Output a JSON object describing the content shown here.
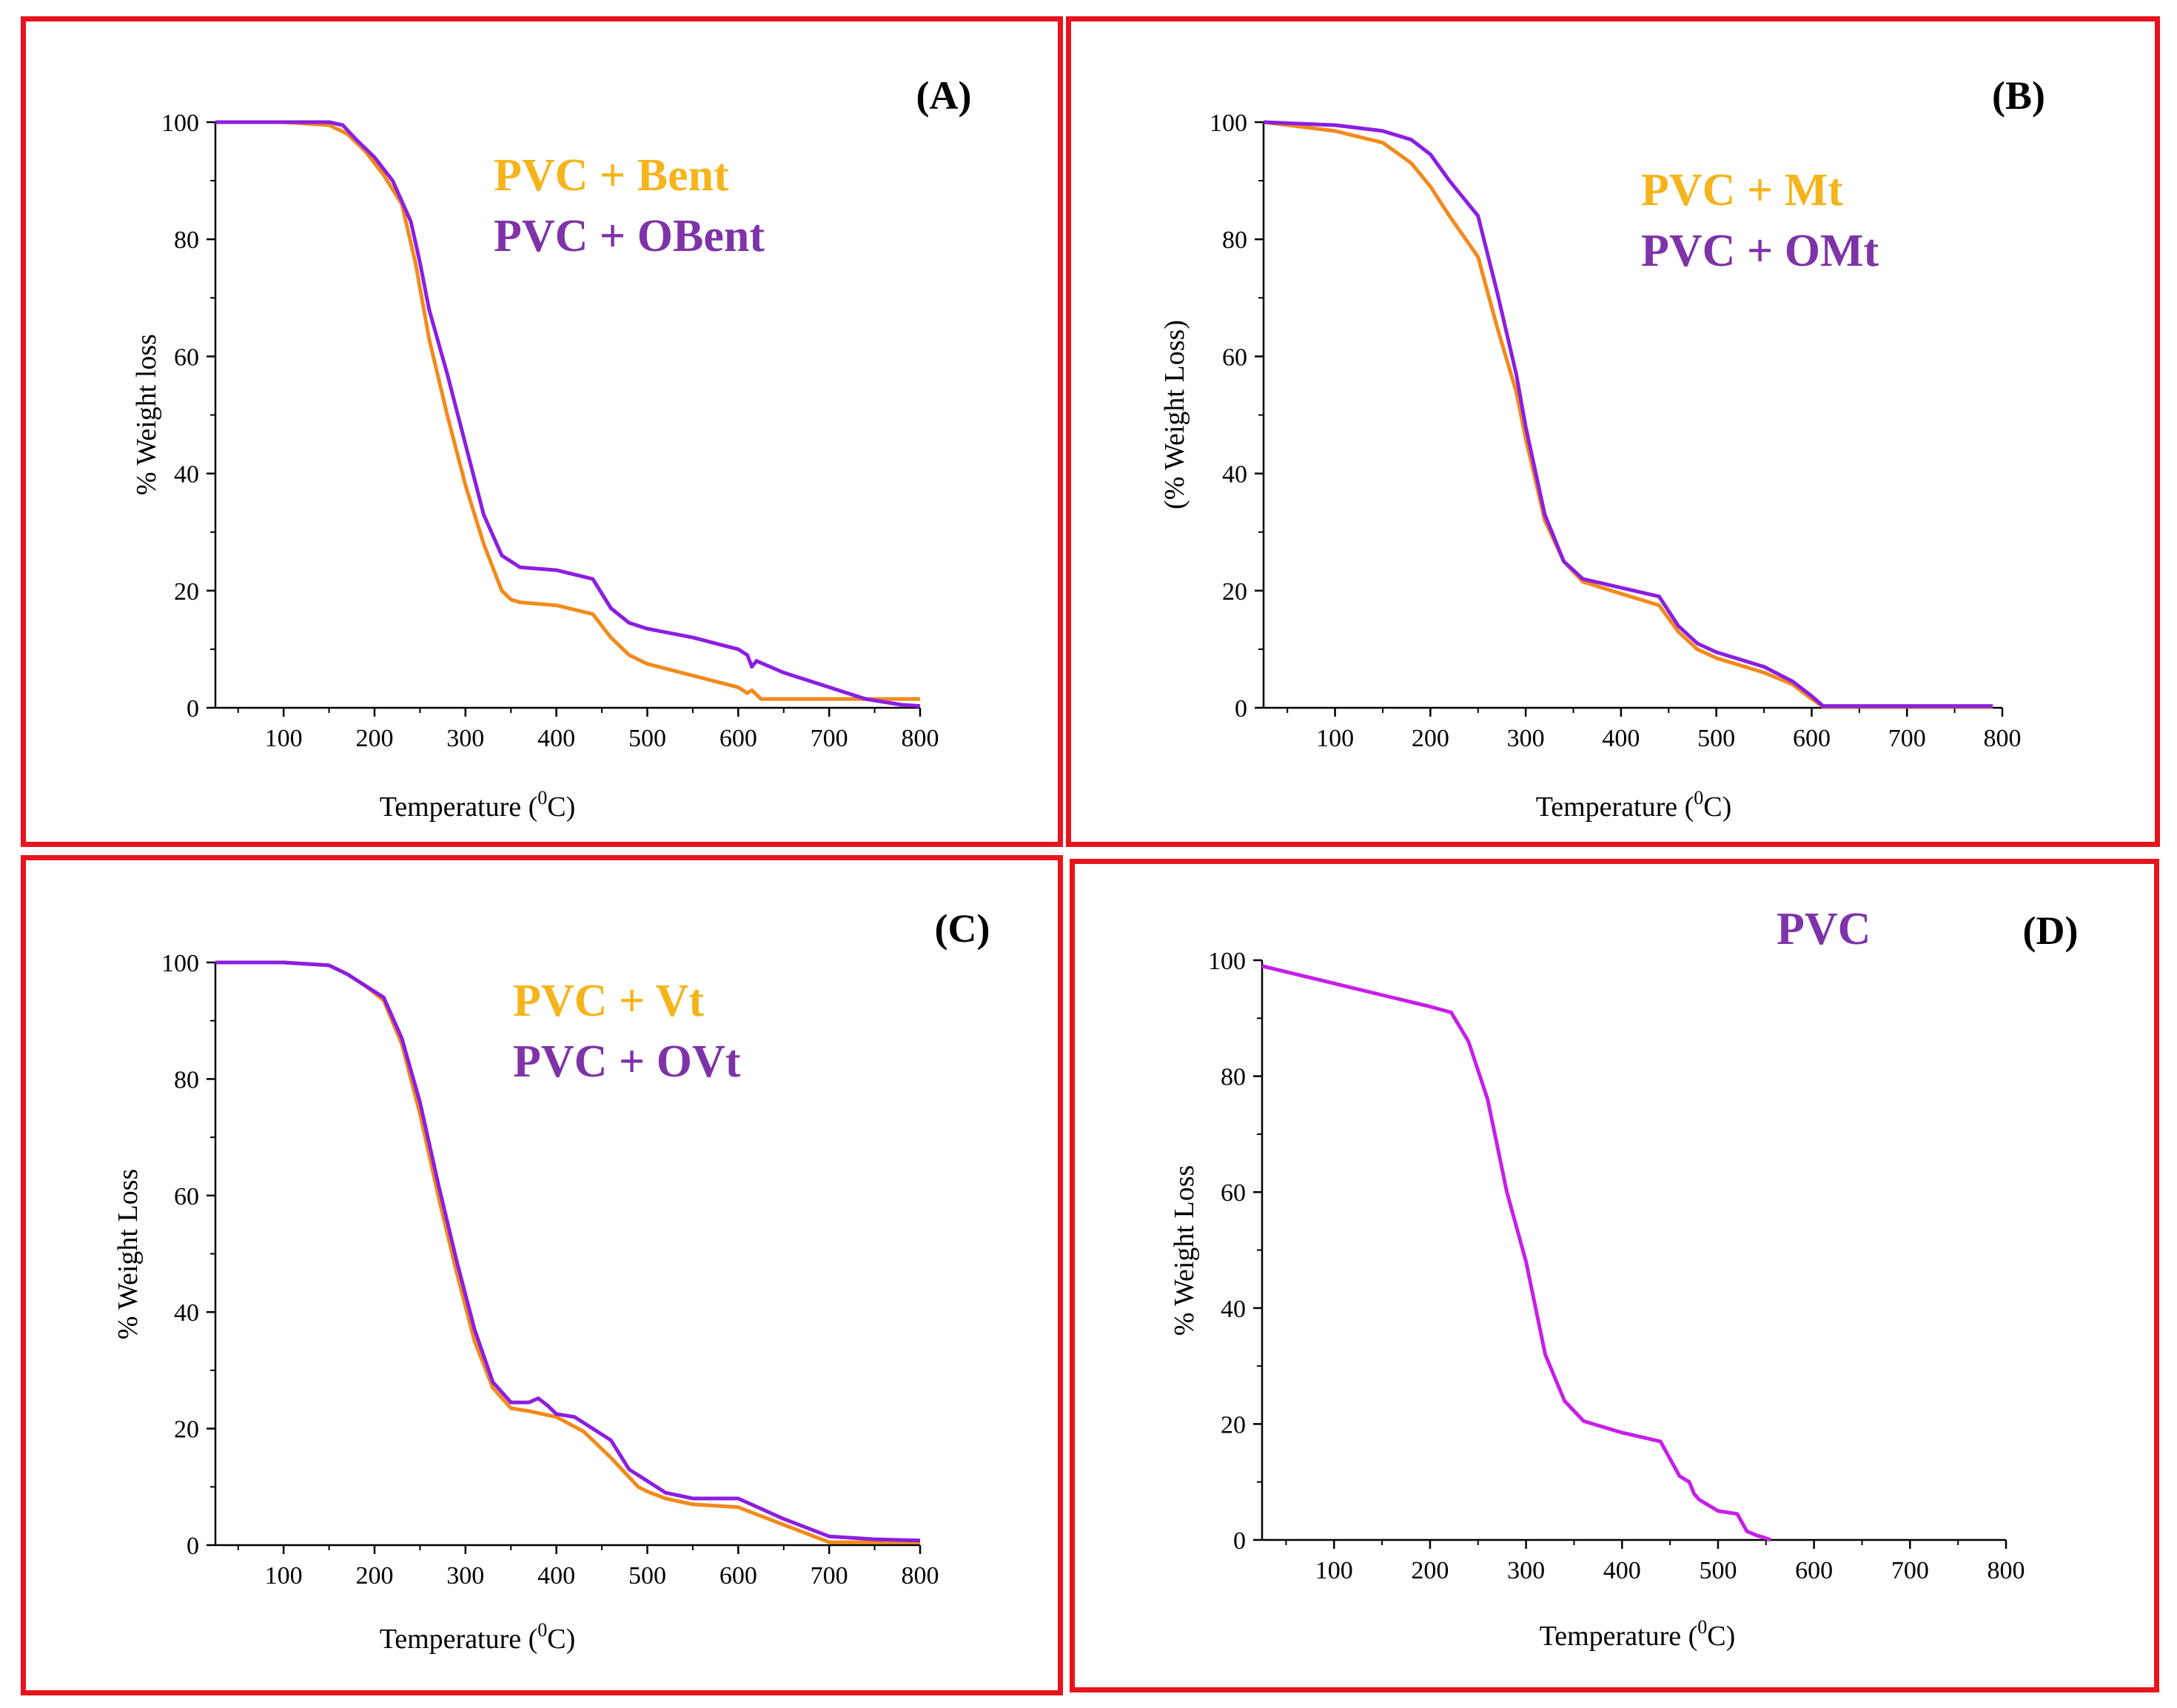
{
  "colors": {
    "orange": "#f28a1b",
    "purple": "#8c1ee0",
    "magenta": "#c61fe8",
    "legend_orange": "#f5b41c",
    "legend_purple": "#7e33a8",
    "frame": "#e8141c"
  },
  "chart_data": [
    {
      "panel": "(A)",
      "type": "line",
      "xlabel_text": "Temperature (",
      "xlabel_sup": "0",
      "xlabel_end": "C)",
      "ylabel": "% Weight loss",
      "xlim": [
        25,
        800
      ],
      "ylim": [
        0,
        100
      ],
      "xticks": [
        "100",
        "200",
        "300",
        "400",
        "500",
        "600",
        "700",
        "800"
      ],
      "yticks": [
        "0",
        "20",
        "40",
        "60",
        "80",
        "100"
      ],
      "series": [
        {
          "name": "PVC + Bent",
          "color": "#f28a1b",
          "x": [
            25,
            100,
            150,
            170,
            190,
            210,
            230,
            245,
            260,
            280,
            300,
            320,
            340,
            350,
            360,
            400,
            440,
            460,
            480,
            500,
            550,
            600,
            610,
            615,
            625,
            640,
            700,
            800
          ],
          "y": [
            100,
            100,
            99.5,
            98,
            95,
            91,
            86,
            76,
            63,
            50,
            38,
            28,
            20,
            18.5,
            18,
            17.5,
            16,
            12,
            9,
            7.5,
            5.5,
            3.5,
            2.5,
            3,
            1.5,
            1.5,
            1.5,
            1.5
          ]
        },
        {
          "name": "PVC + OBent",
          "color": "#8c1ee0",
          "x": [
            25,
            100,
            150,
            165,
            180,
            200,
            220,
            240,
            250,
            260,
            280,
            300,
            320,
            340,
            360,
            400,
            440,
            460,
            480,
            500,
            550,
            600,
            610,
            615,
            620,
            650,
            700,
            740,
            780,
            800
          ],
          "y": [
            100,
            100,
            100,
            99.5,
            97,
            94,
            90,
            83,
            76,
            68,
            57,
            45,
            33,
            26,
            24,
            23.5,
            22,
            17,
            14.5,
            13.5,
            12,
            10,
            9,
            7,
            8,
            6,
            3.5,
            1.5,
            0.5,
            0.3
          ]
        }
      ],
      "legend": [
        "PVC + Bent",
        "PVC + OBent"
      ]
    },
    {
      "panel": "(B)",
      "type": "line",
      "xlabel_text": "Temperature (",
      "xlabel_sup": "0",
      "xlabel_end": "C)",
      "ylabel": "(% Weight Loss)",
      "xlim": [
        25,
        800
      ],
      "ylim": [
        0,
        100
      ],
      "xticks": [
        "100",
        "200",
        "300",
        "400",
        "500",
        "600",
        "700",
        "800"
      ],
      "yticks": [
        "0",
        "20",
        "40",
        "60",
        "80",
        "100"
      ],
      "series": [
        {
          "name": "PVC + Mt",
          "color": "#f28a1b",
          "x": [
            25,
            100,
            150,
            180,
            200,
            220,
            250,
            270,
            290,
            300,
            320,
            340,
            360,
            400,
            440,
            460,
            480,
            500,
            550,
            580,
            600,
            612,
            700,
            790
          ],
          "y": [
            100,
            98.5,
            96.5,
            93,
            89,
            84,
            77,
            65,
            54,
            46,
            32,
            25,
            21.5,
            19.5,
            17.5,
            13,
            10,
            8.5,
            6,
            4,
            1.5,
            0.2,
            0.2,
            0.2
          ]
        },
        {
          "name": "PVC + OMt",
          "color": "#8c1ee0",
          "x": [
            25,
            100,
            150,
            180,
            200,
            220,
            250,
            270,
            290,
            300,
            320,
            340,
            360,
            400,
            440,
            460,
            480,
            500,
            550,
            580,
            600,
            612,
            700,
            790
          ],
          "y": [
            100,
            99.5,
            98.5,
            97,
            94.5,
            90,
            84,
            71,
            57,
            48,
            33,
            25,
            22,
            20.5,
            19,
            14,
            11,
            9.5,
            7,
            4.5,
            2,
            0.3,
            0.3,
            0.3
          ]
        }
      ],
      "legend": [
        "PVC + Mt",
        "PVC + OMt"
      ]
    },
    {
      "panel": "(C)",
      "type": "line",
      "xlabel_text": "Temperature (",
      "xlabel_sup": "0",
      "xlabel_end": "C)",
      "ylabel": "% Weight Loss",
      "xlim": [
        25,
        800
      ],
      "ylim": [
        0,
        100
      ],
      "xticks": [
        "100",
        "200",
        "300",
        "400",
        "500",
        "600",
        "700",
        "800"
      ],
      "yticks": [
        "0",
        "20",
        "40",
        "60",
        "80",
        "100"
      ],
      "series": [
        {
          "name": "PVC + Vt",
          "color": "#f28a1b",
          "x": [
            25,
            100,
            150,
            170,
            190,
            210,
            230,
            250,
            270,
            290,
            310,
            330,
            350,
            370,
            400,
            430,
            460,
            490,
            500,
            520,
            550,
            600,
            650,
            700,
            800
          ],
          "y": [
            100,
            100,
            99.5,
            98,
            96,
            93.5,
            86,
            74,
            60,
            47,
            35,
            27,
            23.5,
            23,
            22,
            19.5,
            15,
            10,
            9.2,
            8,
            7,
            6.5,
            3.5,
            0.5,
            0.5
          ]
        },
        {
          "name": "PVC + OVt",
          "color": "#8c1ee0",
          "x": [
            25,
            100,
            150,
            170,
            190,
            210,
            230,
            250,
            270,
            290,
            310,
            330,
            350,
            370,
            380,
            390,
            400,
            420,
            440,
            460,
            480,
            500,
            520,
            550,
            600,
            650,
            700,
            750,
            800
          ],
          "y": [
            100,
            100,
            99.5,
            98,
            96,
            94,
            87,
            76,
            62,
            49,
            37,
            28,
            24.5,
            24.5,
            25.2,
            24,
            22.5,
            22,
            20,
            18,
            13,
            11,
            9,
            8,
            8,
            4.5,
            1.5,
            1,
            0.8
          ]
        }
      ],
      "legend": [
        "PVC + Vt",
        "PVC + OVt"
      ]
    },
    {
      "panel": "(D)",
      "type": "line",
      "xlabel_text": "Temperature (",
      "xlabel_sup": "0",
      "xlabel_end": "C)",
      "ylabel": "% Weight Loss",
      "xlim": [
        25,
        800
      ],
      "ylim": [
        0,
        100
      ],
      "xticks": [
        "100",
        "200",
        "300",
        "400",
        "500",
        "600",
        "700",
        "800"
      ],
      "yticks": [
        "0",
        "20",
        "40",
        "60",
        "80",
        "100"
      ],
      "series": [
        {
          "name": "PVC",
          "color": "#c61fe8",
          "x": [
            25,
            100,
            150,
            200,
            222,
            240,
            260,
            280,
            300,
            320,
            340,
            360,
            400,
            440,
            450,
            460,
            470,
            475,
            480,
            500,
            520,
            525,
            530,
            540,
            550,
            555
          ],
          "y": [
            99,
            96,
            94,
            92,
            91,
            86,
            76,
            60,
            48,
            32,
            24,
            20.5,
            18.5,
            17,
            14,
            11,
            10,
            8,
            7,
            5,
            4.5,
            3,
            1.5,
            0.8,
            0.3,
            0
          ]
        }
      ],
      "legend": [
        "PVC"
      ]
    }
  ]
}
